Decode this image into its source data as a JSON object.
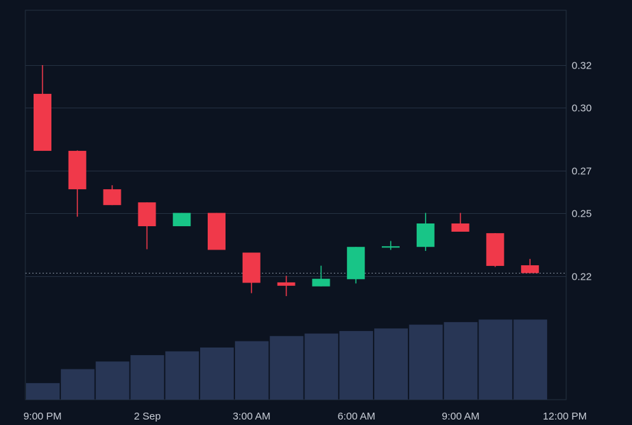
{
  "chart_data": {
    "type": "candlestick",
    "title": "",
    "xlabel": "",
    "ylabel": "",
    "x_tick_labels": [
      "9:00 PM",
      "2 Sep",
      "3:00 AM",
      "6:00 AM",
      "9:00 AM",
      "12:00 PM"
    ],
    "y_tick_labels": [
      "0.32",
      "0.30",
      "0.27",
      "0.25",
      "0.22"
    ],
    "y_tick_values": [
      0.32,
      0.3,
      0.27,
      0.25,
      0.22
    ],
    "ylim": [
      0.2,
      0.34
    ],
    "last_price": 0.2215,
    "grid": true,
    "colors": {
      "background": "#0c1320",
      "grid": "#243041",
      "up": "#18c587",
      "down": "#f0394a",
      "volume": "#283655",
      "text": "#c8cdd6",
      "last_price_line": "#7b8494"
    },
    "candles": [
      {
        "open": 0.3064,
        "high": 0.32,
        "low": 0.2794,
        "close": 0.2794,
        "volume": 0.13
      },
      {
        "open": 0.2794,
        "high": 0.2796,
        "low": 0.2482,
        "close": 0.2612,
        "volume": 0.24
      },
      {
        "open": 0.2612,
        "high": 0.2631,
        "low": 0.2537,
        "close": 0.2537,
        "volume": 0.3
      },
      {
        "open": 0.255,
        "high": 0.255,
        "low": 0.2328,
        "close": 0.2437,
        "volume": 0.35
      },
      {
        "open": 0.2437,
        "high": 0.25,
        "low": 0.2437,
        "close": 0.25,
        "volume": 0.38
      },
      {
        "open": 0.25,
        "high": 0.25,
        "low": 0.2325,
        "close": 0.2325,
        "volume": 0.41
      },
      {
        "open": 0.2312,
        "high": 0.2312,
        "low": 0.212,
        "close": 0.2169,
        "volume": 0.46
      },
      {
        "open": 0.2171,
        "high": 0.2202,
        "low": 0.2106,
        "close": 0.2155,
        "volume": 0.5
      },
      {
        "open": 0.2152,
        "high": 0.225,
        "low": 0.2152,
        "close": 0.2188,
        "volume": 0.52
      },
      {
        "open": 0.2186,
        "high": 0.2339,
        "low": 0.2166,
        "close": 0.2339,
        "volume": 0.54
      },
      {
        "open": 0.2337,
        "high": 0.2367,
        "low": 0.2325,
        "close": 0.2342,
        "volume": 0.56
      },
      {
        "open": 0.2339,
        "high": 0.25,
        "low": 0.232,
        "close": 0.245,
        "volume": 0.59
      },
      {
        "open": 0.245,
        "high": 0.25,
        "low": 0.2411,
        "close": 0.2411,
        "volume": 0.61
      },
      {
        "open": 0.2404,
        "high": 0.2404,
        "low": 0.2244,
        "close": 0.2249,
        "volume": 0.63
      },
      {
        "open": 0.2252,
        "high": 0.2282,
        "low": 0.2215,
        "close": 0.2215,
        "volume": 0.63
      }
    ]
  }
}
